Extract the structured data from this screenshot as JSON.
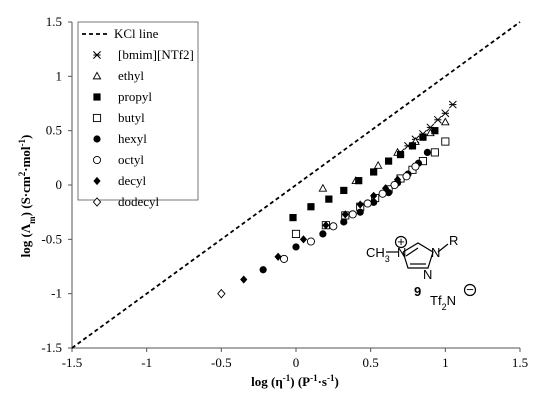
{
  "chart_data": {
    "type": "scatter",
    "xlabel_main": "log (η",
    "xlabel_sup1": "-1",
    "xlabel_units": ") (P",
    "xlabel_sup2": "-1",
    "xlabel_end": "·s",
    "xlabel_sup3": "-1",
    "xlabel_close": ")",
    "ylabel_main": "log (Λ",
    "ylabel_sub": "m",
    "ylabel_units": ") (S·cm",
    "ylabel_sup1": "2",
    "ylabel_mid": "·mol",
    "ylabel_sup2": "-1",
    "ylabel_close": ")",
    "xlim": [
      -1.5,
      1.5
    ],
    "ylim": [
      -1.5,
      1.5
    ],
    "xticks": [
      -1.5,
      -1,
      -0.5,
      0,
      0.5,
      1,
      1.5
    ],
    "yticks": [
      -1.5,
      -1,
      -0.5,
      0,
      0.5,
      1,
      1.5
    ],
    "xtick_labels": [
      "-1.5",
      "-1",
      "-0.5",
      "0",
      "0.5",
      "1",
      "1.5"
    ],
    "ytick_labels": [
      "-1.5",
      "-1",
      "-0.5",
      "0",
      "0.5",
      "1",
      "1.5"
    ],
    "grid": false,
    "legend_position": "top-left",
    "reference_line": {
      "name": "KCl line",
      "style": "dashed",
      "x": [
        -1.5,
        1.5
      ],
      "y": [
        -1.5,
        1.5
      ]
    },
    "series": [
      {
        "name": "[bmim][NTf2]",
        "marker": "asterisk",
        "x": [
          0.7,
          0.75,
          0.8,
          0.85,
          0.9,
          0.95,
          1.0,
          1.05
        ],
        "y": [
          0.3,
          0.36,
          0.42,
          0.47,
          0.53,
          0.6,
          0.66,
          0.74
        ]
      },
      {
        "name": "ethyl",
        "marker": "open-triangle",
        "x": [
          0.18,
          0.4,
          0.55,
          0.68,
          0.8,
          0.9,
          1.0
        ],
        "y": [
          -0.03,
          0.04,
          0.18,
          0.3,
          0.4,
          0.48,
          0.58
        ]
      },
      {
        "name": "propyl",
        "marker": "filled-square",
        "x": [
          -0.02,
          0.1,
          0.22,
          0.32,
          0.42,
          0.52,
          0.62,
          0.7,
          0.78,
          0.85,
          0.93
        ],
        "y": [
          -0.3,
          -0.2,
          -0.13,
          -0.05,
          0.04,
          0.12,
          0.22,
          0.28,
          0.36,
          0.44,
          0.5
        ]
      },
      {
        "name": "butyl",
        "marker": "open-square",
        "x": [
          0.0,
          0.2,
          0.33,
          0.43,
          0.53,
          0.62,
          0.7,
          0.78,
          0.85,
          0.93,
          1.0
        ],
        "y": [
          -0.45,
          -0.37,
          -0.28,
          -0.2,
          -0.12,
          -0.04,
          0.06,
          0.14,
          0.22,
          0.3,
          0.4
        ]
      },
      {
        "name": "hexyl",
        "marker": "filled-circle",
        "x": [
          -0.22,
          0.0,
          0.18,
          0.32,
          0.43,
          0.52,
          0.62,
          0.68,
          0.75,
          0.82,
          0.88
        ],
        "y": [
          -0.78,
          -0.57,
          -0.45,
          -0.34,
          -0.25,
          -0.16,
          -0.07,
          0.02,
          0.1,
          0.2,
          0.3
        ]
      },
      {
        "name": "octyl",
        "marker": "open-circle",
        "x": [
          -0.08,
          0.1,
          0.25,
          0.38,
          0.48,
          0.58,
          0.66,
          0.74,
          0.8
        ],
        "y": [
          -0.68,
          -0.52,
          -0.38,
          -0.27,
          -0.17,
          -0.08,
          0.0,
          0.08,
          0.17
        ]
      },
      {
        "name": "decyl",
        "marker": "filled-diamond",
        "x": [
          -0.35,
          -0.12,
          0.05,
          0.2,
          0.33,
          0.43,
          0.52,
          0.6,
          0.68
        ],
        "y": [
          -0.87,
          -0.66,
          -0.5,
          -0.37,
          -0.27,
          -0.18,
          -0.1,
          -0.03,
          0.05
        ]
      },
      {
        "name": "dodecyl",
        "marker": "open-diamond",
        "x": [
          -0.5
        ],
        "y": [
          -1.0
        ]
      }
    ]
  },
  "structure": {
    "label": "9",
    "anion": "Tf",
    "anion_sub": "2",
    "anion_tail": "N",
    "ring_n_left": "N",
    "ring_n_right": "N",
    "ring_n_bottom": "N",
    "methyl": "CH",
    "methyl_sub": "3",
    "substituent": "R",
    "plus": "+",
    "minus": "−"
  }
}
